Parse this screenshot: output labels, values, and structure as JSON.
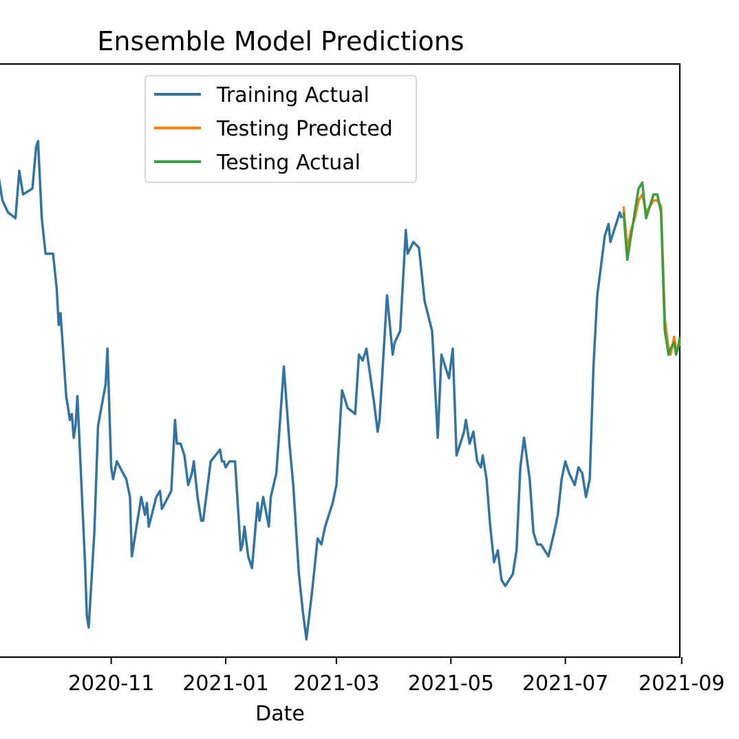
{
  "chart_data": {
    "type": "line",
    "title": "Ensemble Model Predictions",
    "xlabel": "Date",
    "ylabel": "",
    "x_tick_labels": [
      "2020-11",
      "2021-01",
      "2021-03",
      "2021-05",
      "2021-07",
      "2021-09"
    ],
    "x_tick_dates": [
      "2020-11-01",
      "2021-01-01",
      "2021-03-01",
      "2021-05-01",
      "2021-07-01",
      "2021-09-01"
    ],
    "xlim": [
      "2020-09-02",
      "2021-08-31"
    ],
    "ylim": [
      0,
      100
    ],
    "grid": false,
    "legend_position": "upper-center",
    "series": [
      {
        "name": "Training Actual",
        "color": "#3274a1",
        "points": [
          [
            "2020-09-02",
            81
          ],
          [
            "2020-09-04",
            77
          ],
          [
            "2020-09-07",
            75
          ],
          [
            "2020-09-11",
            74
          ],
          [
            "2020-09-13",
            82
          ],
          [
            "2020-09-15",
            78
          ],
          [
            "2020-09-20",
            79
          ],
          [
            "2020-09-22",
            86
          ],
          [
            "2020-09-23",
            87
          ],
          [
            "2020-09-25",
            74
          ],
          [
            "2020-09-27",
            68
          ],
          [
            "2020-10-01",
            68
          ],
          [
            "2020-10-03",
            62
          ],
          [
            "2020-10-04",
            56
          ],
          [
            "2020-10-05",
            58
          ],
          [
            "2020-10-08",
            44
          ],
          [
            "2020-10-10",
            40
          ],
          [
            "2020-10-11",
            41
          ],
          [
            "2020-10-12",
            37
          ],
          [
            "2020-10-13",
            39
          ],
          [
            "2020-10-14",
            44
          ],
          [
            "2020-10-16",
            30
          ],
          [
            "2020-10-18",
            16
          ],
          [
            "2020-10-19",
            7
          ],
          [
            "2020-10-20",
            5
          ],
          [
            "2020-10-23",
            21
          ],
          [
            "2020-10-25",
            39
          ],
          [
            "2020-10-29",
            46
          ],
          [
            "2020-10-30",
            52
          ],
          [
            "2020-11-01",
            32
          ],
          [
            "2020-11-02",
            30
          ],
          [
            "2020-11-04",
            33
          ],
          [
            "2020-11-09",
            30
          ],
          [
            "2020-11-11",
            27
          ],
          [
            "2020-11-12",
            17
          ],
          [
            "2020-11-15",
            23
          ],
          [
            "2020-11-17",
            27
          ],
          [
            "2020-11-19",
            24
          ],
          [
            "2020-11-20",
            26
          ],
          [
            "2020-11-21",
            22
          ],
          [
            "2020-11-25",
            27
          ],
          [
            "2020-11-27",
            28
          ],
          [
            "2020-11-28",
            25
          ],
          [
            "2020-12-03",
            28
          ],
          [
            "2020-12-05",
            40
          ],
          [
            "2020-12-06",
            36
          ],
          [
            "2020-12-08",
            36
          ],
          [
            "2020-12-10",
            34
          ],
          [
            "2020-12-12",
            29
          ],
          [
            "2020-12-14",
            31
          ],
          [
            "2020-12-15",
            33
          ],
          [
            "2020-12-17",
            27
          ],
          [
            "2020-12-19",
            23
          ],
          [
            "2020-12-20",
            23
          ],
          [
            "2020-12-24",
            33
          ],
          [
            "2020-12-29",
            35
          ],
          [
            "2020-12-30",
            33
          ],
          [
            "2020-12-31",
            33
          ],
          [
            "2021-01-01",
            32
          ],
          [
            "2021-01-03",
            33
          ],
          [
            "2021-01-06",
            33
          ],
          [
            "2021-01-09",
            18
          ],
          [
            "2021-01-10",
            19
          ],
          [
            "2021-01-11",
            22
          ],
          [
            "2021-01-13",
            17
          ],
          [
            "2021-01-15",
            15
          ],
          [
            "2021-01-18",
            26
          ],
          [
            "2021-01-19",
            23
          ],
          [
            "2021-01-21",
            27
          ],
          [
            "2021-01-24",
            22
          ],
          [
            "2021-01-25",
            27
          ],
          [
            "2021-01-28",
            31
          ],
          [
            "2021-01-30",
            40
          ],
          [
            "2021-02-01",
            49
          ],
          [
            "2021-02-04",
            36
          ],
          [
            "2021-02-06",
            29
          ],
          [
            "2021-02-09",
            14
          ],
          [
            "2021-02-11",
            8
          ],
          [
            "2021-02-13",
            3
          ],
          [
            "2021-02-16",
            11
          ],
          [
            "2021-02-19",
            20
          ],
          [
            "2021-02-21",
            19
          ],
          [
            "2021-02-23",
            22
          ],
          [
            "2021-02-27",
            26
          ],
          [
            "2021-03-01",
            29
          ],
          [
            "2021-03-04",
            45
          ],
          [
            "2021-03-07",
            42
          ],
          [
            "2021-03-11",
            41
          ],
          [
            "2021-03-13",
            51
          ],
          [
            "2021-03-15",
            50
          ],
          [
            "2021-03-17",
            52
          ],
          [
            "2021-03-21",
            43
          ],
          [
            "2021-03-23",
            38
          ],
          [
            "2021-03-24",
            40
          ],
          [
            "2021-03-28",
            61
          ],
          [
            "2021-03-31",
            51
          ],
          [
            "2021-04-01",
            53
          ],
          [
            "2021-04-04",
            55
          ],
          [
            "2021-04-07",
            72
          ],
          [
            "2021-04-08",
            68
          ],
          [
            "2021-04-11",
            70
          ],
          [
            "2021-04-14",
            69
          ],
          [
            "2021-04-17",
            60
          ],
          [
            "2021-04-21",
            55
          ],
          [
            "2021-04-24",
            37
          ],
          [
            "2021-04-26",
            51
          ],
          [
            "2021-04-28",
            49
          ],
          [
            "2021-04-30",
            47
          ],
          [
            "2021-05-02",
            52
          ],
          [
            "2021-05-04",
            34
          ],
          [
            "2021-05-06",
            36
          ],
          [
            "2021-05-08",
            38
          ],
          [
            "2021-05-09",
            40
          ],
          [
            "2021-05-11",
            36
          ],
          [
            "2021-05-13",
            38
          ],
          [
            "2021-05-15",
            33
          ],
          [
            "2021-05-17",
            32
          ],
          [
            "2021-05-18",
            34
          ],
          [
            "2021-05-20",
            30
          ],
          [
            "2021-05-22",
            22
          ],
          [
            "2021-05-24",
            16
          ],
          [
            "2021-05-26",
            18
          ],
          [
            "2021-05-28",
            13
          ],
          [
            "2021-05-30",
            12
          ],
          [
            "2021-06-01",
            13
          ],
          [
            "2021-06-03",
            14
          ],
          [
            "2021-06-05",
            18
          ],
          [
            "2021-06-07",
            32
          ],
          [
            "2021-06-09",
            37
          ],
          [
            "2021-06-12",
            30
          ],
          [
            "2021-06-14",
            21
          ],
          [
            "2021-06-16",
            19
          ],
          [
            "2021-06-18",
            19
          ],
          [
            "2021-06-20",
            18
          ],
          [
            "2021-06-22",
            17
          ],
          [
            "2021-06-25",
            21
          ],
          [
            "2021-06-27",
            24
          ],
          [
            "2021-06-29",
            30
          ],
          [
            "2021-07-01",
            33
          ],
          [
            "2021-07-03",
            31
          ],
          [
            "2021-07-06",
            29
          ],
          [
            "2021-07-08",
            32
          ],
          [
            "2021-07-10",
            31
          ],
          [
            "2021-07-12",
            27
          ],
          [
            "2021-07-14",
            30
          ],
          [
            "2021-07-16",
            49
          ],
          [
            "2021-07-18",
            61
          ],
          [
            "2021-07-20",
            66
          ],
          [
            "2021-07-22",
            71
          ],
          [
            "2021-07-24",
            73
          ],
          [
            "2021-07-25",
            70
          ],
          [
            "2021-07-28",
            73
          ],
          [
            "2021-07-30",
            75
          ],
          [
            "2021-07-31",
            74
          ]
        ]
      },
      {
        "name": "Testing Predicted",
        "color": "#ff7f0e",
        "points": [
          [
            "2021-08-01",
            76
          ],
          [
            "2021-08-03",
            69
          ],
          [
            "2021-08-05",
            72
          ],
          [
            "2021-08-07",
            74
          ],
          [
            "2021-08-09",
            77
          ],
          [
            "2021-08-11",
            78
          ],
          [
            "2021-08-13",
            75
          ],
          [
            "2021-08-15",
            76
          ],
          [
            "2021-08-17",
            77
          ],
          [
            "2021-08-19",
            77
          ],
          [
            "2021-08-21",
            76
          ],
          [
            "2021-08-23",
            57
          ],
          [
            "2021-08-25",
            52
          ],
          [
            "2021-08-26",
            51
          ],
          [
            "2021-08-28",
            54
          ],
          [
            "2021-08-29",
            52
          ],
          [
            "2021-08-30",
            52
          ],
          [
            "2021-08-31",
            53
          ]
        ]
      },
      {
        "name": "Testing Actual",
        "color": "#3a9e3a",
        "points": [
          [
            "2021-08-01",
            75
          ],
          [
            "2021-08-03",
            67
          ],
          [
            "2021-08-05",
            71
          ],
          [
            "2021-08-07",
            75
          ],
          [
            "2021-08-09",
            79
          ],
          [
            "2021-08-11",
            80
          ],
          [
            "2021-08-13",
            74
          ],
          [
            "2021-08-15",
            76
          ],
          [
            "2021-08-17",
            78
          ],
          [
            "2021-08-19",
            78
          ],
          [
            "2021-08-21",
            75
          ],
          [
            "2021-08-23",
            55
          ],
          [
            "2021-08-25",
            51
          ],
          [
            "2021-08-26",
            52
          ],
          [
            "2021-08-28",
            53
          ],
          [
            "2021-08-29",
            51
          ],
          [
            "2021-08-30",
            52
          ],
          [
            "2021-08-31",
            54
          ]
        ]
      }
    ]
  }
}
